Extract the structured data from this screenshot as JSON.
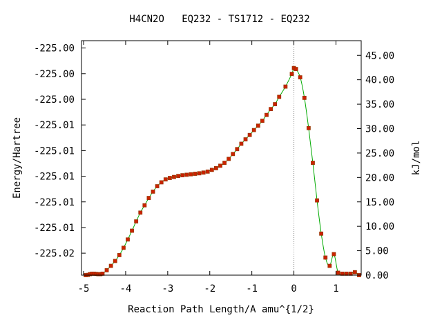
{
  "chart_data": {
    "type": "line",
    "title": "H4CN2O   EQ232 - TS1712 - EQ232",
    "xlabel": "Reaction Path Length/A amu^{1/2}",
    "ylabel_left": "Energy/Hartree",
    "ylabel_right": "kJ/mol",
    "xlim": [
      -5.05,
      1.6
    ],
    "ylim_kjmol": [
      0,
      48
    ],
    "x_ticks": [
      "-5",
      "-4",
      "-3",
      "-2",
      "-1",
      "0",
      "1"
    ],
    "left_ticks": [
      {
        "label": "-225.00",
        "kj": 46.5
      },
      {
        "label": "-225.00",
        "kj": 41.25
      },
      {
        "label": "-225.00",
        "kj": 36.0
      },
      {
        "label": "-225.01",
        "kj": 30.75
      },
      {
        "label": "-225.01",
        "kj": 25.5
      },
      {
        "label": "-225.01",
        "kj": 20.25
      },
      {
        "label": "-225.01",
        "kj": 15.0
      },
      {
        "label": "-225.01",
        "kj": 9.75
      },
      {
        "label": "-225.02",
        "kj": 4.5
      }
    ],
    "right_ticks": [
      "0.00",
      "5.00",
      "10.00",
      "15.00",
      "20.00",
      "25.00",
      "30.00",
      "35.00",
      "40.00",
      "45.00"
    ],
    "ts_x": 0.0,
    "colors": {
      "curve": "#00aa00",
      "points": "#cc2200",
      "point_edge": "#993300",
      "ts_line": "#888888"
    },
    "points": {
      "x": [
        -4.95,
        -4.9,
        -4.85,
        -4.8,
        -4.75,
        -4.7,
        -4.65,
        -4.6,
        -4.55,
        -4.45,
        -4.35,
        -4.25,
        -4.15,
        -4.05,
        -3.95,
        -3.85,
        -3.75,
        -3.65,
        -3.55,
        -3.45,
        -3.35,
        -3.25,
        -3.15,
        -3.05,
        -2.95,
        -2.85,
        -2.75,
        -2.65,
        -2.55,
        -2.45,
        -2.35,
        -2.25,
        -2.15,
        -2.05,
        -1.95,
        -1.85,
        -1.75,
        -1.65,
        -1.55,
        -1.45,
        -1.35,
        -1.25,
        -1.15,
        -1.05,
        -0.95,
        -0.85,
        -0.75,
        -0.65,
        -0.55,
        -0.45,
        -0.35,
        -0.2,
        -0.05,
        0.0,
        0.05,
        0.15,
        0.25,
        0.35,
        0.45,
        0.55,
        0.65,
        0.75,
        0.85,
        0.95,
        1.05,
        1.15,
        1.25,
        1.35,
        1.45,
        1.55
      ],
      "y": [
        0.0,
        0.05,
        0.2,
        0.3,
        0.3,
        0.25,
        0.2,
        0.2,
        0.3,
        1.0,
        1.9,
        2.9,
        4.1,
        5.6,
        7.3,
        9.1,
        11.0,
        12.8,
        14.3,
        15.8,
        17.1,
        18.2,
        19.0,
        19.6,
        19.9,
        20.1,
        20.3,
        20.45,
        20.55,
        20.65,
        20.75,
        20.85,
        21.0,
        21.2,
        21.55,
        21.9,
        22.4,
        23.0,
        23.8,
        24.8,
        25.8,
        26.9,
        27.8,
        28.7,
        29.7,
        30.6,
        31.6,
        32.8,
        34.0,
        35.0,
        36.5,
        38.6,
        41.2,
        42.4,
        42.2,
        40.5,
        36.3,
        30.1,
        23.0,
        15.3,
        8.5,
        3.6,
        1.9,
        4.3,
        0.5,
        0.3,
        0.3,
        0.3,
        0.6,
        0.0
      ]
    }
  }
}
